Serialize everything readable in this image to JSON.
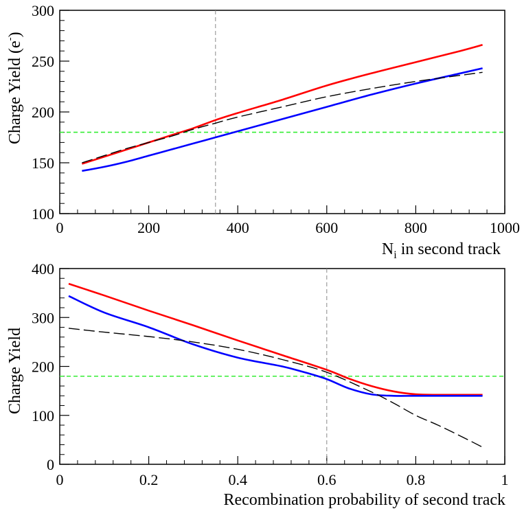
{
  "chart_data": [
    {
      "type": "line",
      "xlabel": "N",
      "xlabel_sub": "i",
      "xlabel_rest": " in second track",
      "ylabel": "Charge Yield (e",
      "ylabel_sup": "-",
      "ylabel_end": ")",
      "xlim": [
        0,
        1000
      ],
      "ylim": [
        100,
        300
      ],
      "x_ticks": [
        0,
        200,
        400,
        600,
        800,
        1000
      ],
      "y_ticks": [
        100,
        150,
        200,
        250,
        300
      ],
      "x_tick_labels": [
        "0",
        "200",
        "400",
        "600",
        "800",
        "1000"
      ],
      "y_tick_labels": [
        "100",
        "150",
        "200",
        "250",
        "300"
      ],
      "vertical_line_x": 350,
      "horizontal_line_y": 180,
      "series": [
        {
          "name": "red",
          "color": "#ff0000",
          "style": "solid",
          "x": [
            50,
            100,
            150,
            200,
            250,
            300,
            350,
            400,
            500,
            600,
            700,
            800,
            900,
            950
          ],
          "y": [
            149,
            156,
            163,
            170,
            177,
            184,
            192,
            199,
            212,
            226,
            238,
            249,
            260,
            266
          ]
        },
        {
          "name": "blue",
          "color": "#0000ff",
          "style": "solid",
          "x": [
            50,
            100,
            150,
            200,
            250,
            300,
            350,
            400,
            500,
            600,
            700,
            800,
            900,
            950
          ],
          "y": [
            142,
            146,
            151,
            157,
            163,
            169,
            175,
            181,
            193,
            205,
            217,
            228,
            238,
            243
          ]
        },
        {
          "name": "black-dashed",
          "color": "#000000",
          "style": "dashed",
          "x": [
            50,
            100,
            150,
            200,
            250,
            300,
            350,
            400,
            500,
            600,
            700,
            800,
            900,
            950
          ],
          "y": [
            150,
            157,
            164,
            170,
            176,
            183,
            189,
            195,
            205,
            215,
            223,
            230,
            236,
            239
          ]
        }
      ]
    },
    {
      "type": "line",
      "xlabel": "Recombination probability of second track",
      "ylabel": "Charge Yield",
      "xlim": [
        0,
        1
      ],
      "ylim": [
        0,
        400
      ],
      "x_ticks": [
        0,
        0.2,
        0.4,
        0.6,
        0.8,
        1
      ],
      "y_ticks": [
        0,
        100,
        200,
        300,
        400
      ],
      "x_tick_labels": [
        "0",
        "0.2",
        "0.4",
        "0.6",
        "0.8",
        "1"
      ],
      "y_tick_labels": [
        "0",
        "100",
        "200",
        "300",
        "400"
      ],
      "vertical_line_x": 0.6,
      "horizontal_line_y": 180,
      "series": [
        {
          "name": "red",
          "color": "#ff0000",
          "style": "solid",
          "x": [
            0.02,
            0.1,
            0.2,
            0.3,
            0.4,
            0.5,
            0.6,
            0.65,
            0.7,
            0.75,
            0.8,
            0.85,
            0.9,
            0.95
          ],
          "y": [
            369,
            345,
            314,
            284,
            253,
            223,
            193,
            175,
            160,
            149,
            143,
            142,
            142,
            142
          ]
        },
        {
          "name": "blue",
          "color": "#0000ff",
          "style": "solid",
          "x": [
            0.02,
            0.1,
            0.2,
            0.3,
            0.4,
            0.5,
            0.55,
            0.6,
            0.65,
            0.7,
            0.75,
            0.8,
            0.85,
            0.9,
            0.95
          ],
          "y": [
            344,
            310,
            280,
            245,
            218,
            200,
            188,
            174,
            155,
            143,
            140,
            140,
            140,
            140,
            140
          ]
        },
        {
          "name": "black-dashed",
          "color": "#000000",
          "style": "dashed",
          "x": [
            0.02,
            0.1,
            0.2,
            0.3,
            0.4,
            0.5,
            0.6,
            0.7,
            0.75,
            0.8,
            0.85,
            0.9,
            0.95
          ],
          "y": [
            278,
            270,
            261,
            250,
            235,
            214,
            188,
            148,
            125,
            100,
            80,
            58,
            35
          ]
        }
      ]
    }
  ]
}
